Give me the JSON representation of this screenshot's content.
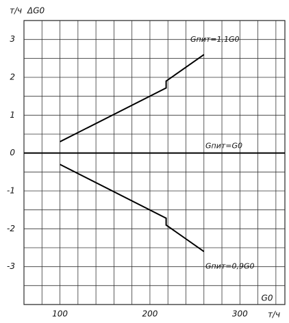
{
  "chart_data": {
    "type": "line",
    "y_unit": "т/ч",
    "y_label": "ΔG0",
    "x_label": "G0",
    "x_unit": "т/ч",
    "xlim": [
      60,
      350
    ],
    "ylim": [
      -4,
      3.5
    ],
    "xticks": [
      100,
      200,
      300
    ],
    "yticks": [
      -3,
      -2,
      -1,
      0,
      1,
      2,
      3
    ],
    "x_minor_grid": [
      60,
      80,
      120,
      140,
      160,
      180,
      220,
      240,
      260,
      280,
      320,
      340
    ],
    "y_minor_grid": [
      -3.5,
      -2.5,
      -1.5,
      -0.5,
      0.5,
      1.5,
      2.5
    ],
    "grid": true,
    "color": "#000000",
    "series": [
      {
        "name": "Gпит=1,1G0",
        "x": [
          100,
          218,
          218,
          260
        ],
        "values": [
          0.3,
          1.72,
          1.9,
          2.6
        ]
      },
      {
        "name": "Gпит=G0",
        "x": [
          60,
          350
        ],
        "values": [
          0,
          0
        ]
      },
      {
        "name": "Gпит=0,9G0",
        "x": [
          100,
          218,
          218,
          260
        ],
        "values": [
          -0.3,
          -1.72,
          -1.9,
          -2.6
        ]
      }
    ]
  }
}
